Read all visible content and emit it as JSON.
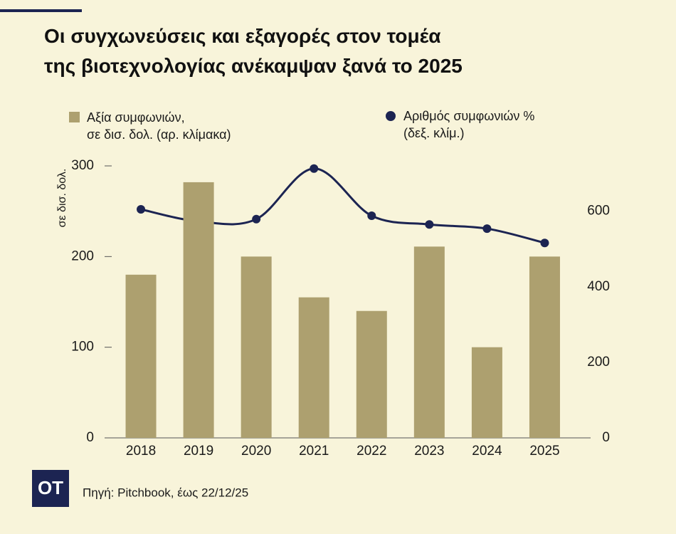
{
  "chart_data": {
    "type": "bar_line",
    "title": "Οι συγχωνεύσεις και εξαγορές στον τομέα\nτης βιοτεχνολογίας ανέκαμψαν ξανά το 2025",
    "ylabel": "σε δισ. δολ.",
    "categories": [
      "2018",
      "2019",
      "2020",
      "2021",
      "2022",
      "2023",
      "2024",
      "2025"
    ],
    "series": [
      {
        "name": "Αξία συμφωνιών,\nσε δισ. δολ. (αρ. κλίμακα)",
        "type": "bar",
        "color": "#ada06f",
        "values": [
          180,
          282,
          200,
          155,
          140,
          211,
          100,
          200
        ]
      },
      {
        "name": "Αριθμός συμφωνιών %\n(δεξ. κλίμ.)",
        "type": "line",
        "axis": "y2",
        "color": "#1c2452",
        "values": [
          605,
          573,
          579,
          713,
          588,
          565,
          554,
          516
        ]
      }
    ],
    "ylim": [
      0,
      300
    ],
    "yticks": [
      0,
      100,
      200,
      300
    ],
    "y2lim": [
      0,
      720
    ],
    "y2ticks": [
      0,
      200,
      400,
      600
    ],
    "source": "Πηγή: Pitchbook, έως 22/12/25"
  },
  "logo": "OT"
}
